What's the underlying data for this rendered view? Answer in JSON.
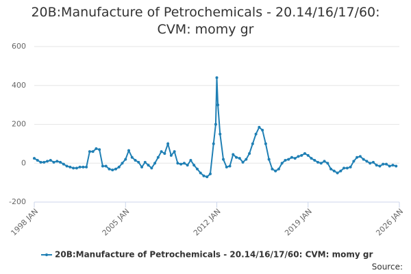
{
  "chart_data": {
    "type": "line",
    "title": "20B:Manufacture of Petrochemicals - 20.14/16/17/60: CVM: momy gr",
    "source": "Source:",
    "x": [
      "1998 JAN",
      "1998 APR",
      "1998 JUL",
      "1998 OCT",
      "1999 JAN",
      "1999 APR",
      "1999 JUL",
      "1999 OCT",
      "2000 JAN",
      "2000 APR",
      "2000 JUL",
      "2000 OCT",
      "2001 JAN",
      "2001 APR",
      "2001 JUL",
      "2001 OCT",
      "2002 JAN",
      "2002 APR",
      "2002 JUL",
      "2002 OCT",
      "2003 JAN",
      "2003 APR",
      "2003 JUL",
      "2003 OCT",
      "2004 JAN",
      "2004 APR",
      "2004 JUL",
      "2004 OCT",
      "2005 JAN",
      "2005 APR",
      "2005 JUL",
      "2005 OCT",
      "2006 JAN",
      "2006 APR",
      "2006 JUL",
      "2006 OCT",
      "2007 JAN",
      "2007 APR",
      "2007 JUL",
      "2007 OCT",
      "2008 JAN",
      "2008 APR",
      "2008 JUL",
      "2008 OCT",
      "2009 JAN",
      "2009 APR",
      "2009 JUL",
      "2009 OCT",
      "2010 JAN",
      "2010 APR",
      "2010 JUL",
      "2010 OCT",
      "2011 JAN",
      "2011 APR",
      "2011 JUL",
      "2011 OCT",
      "2011 DEC",
      "2012 JAN",
      "2012 FEB",
      "2012 APR",
      "2012 JUL",
      "2012 OCT",
      "2013 JAN",
      "2013 APR",
      "2013 JUL",
      "2013 OCT",
      "2014 JAN",
      "2014 APR",
      "2014 JUL",
      "2014 OCT",
      "2015 JAN",
      "2015 APR",
      "2015 JUL",
      "2015 OCT",
      "2016 JAN",
      "2016 APR",
      "2016 JUL",
      "2016 OCT",
      "2017 JAN",
      "2017 APR",
      "2017 JUL",
      "2017 OCT",
      "2018 JAN",
      "2018 APR",
      "2018 JUL",
      "2018 OCT",
      "2019 JAN",
      "2019 APR",
      "2019 JUL",
      "2019 OCT",
      "2020 JAN",
      "2020 APR",
      "2020 JUL",
      "2020 OCT",
      "2021 JAN",
      "2021 APR",
      "2021 JUL",
      "2021 OCT",
      "2022 JAN",
      "2022 APR",
      "2022 JUL",
      "2022 OCT",
      "2023 JAN",
      "2023 APR",
      "2023 JUL",
      "2023 OCT",
      "2024 JAN",
      "2024 APR",
      "2024 JUL",
      "2024 OCT",
      "2025 JAN",
      "2025 APR",
      "2025 JUL",
      "2025 OCT"
    ],
    "series": [
      {
        "name": "20B:Manufacture of Petrochemicals - 20.14/16/17/60: CVM: momy gr",
        "color": "#1f7fb4",
        "values": [
          25,
          15,
          5,
          5,
          10,
          15,
          5,
          10,
          5,
          -5,
          -15,
          -20,
          -25,
          -25,
          -20,
          -20,
          -20,
          60,
          60,
          75,
          70,
          -15,
          -15,
          -30,
          -35,
          -30,
          -20,
          0,
          20,
          65,
          30,
          15,
          5,
          -20,
          5,
          -10,
          -25,
          0,
          30,
          60,
          50,
          100,
          40,
          60,
          0,
          -5,
          0,
          -10,
          15,
          -10,
          -30,
          -50,
          -65,
          -70,
          -55,
          100,
          200,
          440,
          300,
          150,
          20,
          -20,
          -15,
          45,
          30,
          25,
          5,
          20,
          50,
          100,
          150,
          185,
          170,
          100,
          20,
          -30,
          -40,
          -30,
          0,
          15,
          20,
          30,
          25,
          35,
          40,
          50,
          40,
          25,
          15,
          5,
          0,
          10,
          0,
          -30,
          -40,
          -50,
          -40,
          -25,
          -25,
          -20,
          10,
          30,
          35,
          20,
          10,
          0,
          5,
          -10,
          -15,
          -5,
          -5,
          -15,
          -10,
          -15
        ]
      }
    ],
    "xlim": [
      "1998 JAN",
      "2026 JAN"
    ],
    "xticks": [
      "1998 JAN",
      "2005 JAN",
      "2012 JAN",
      "2019 JAN",
      "2026 JAN"
    ],
    "ylim": [
      -200,
      600
    ],
    "yticks": [
      -200,
      0,
      200,
      400,
      600
    ],
    "grid": true
  }
}
